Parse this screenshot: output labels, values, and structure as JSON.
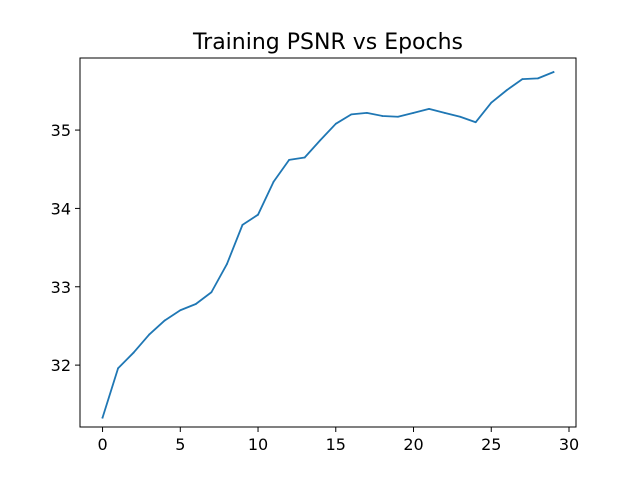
{
  "chart_data": {
    "type": "line",
    "title": "Training PSNR vs Epochs",
    "xlabel": "",
    "ylabel": "",
    "xlim": [
      -1.45,
      30.45
    ],
    "ylim": [
      31.21,
      35.92
    ],
    "x_ticks": [
      0,
      5,
      10,
      15,
      20,
      25,
      30
    ],
    "y_ticks": [
      32,
      33,
      34,
      35
    ],
    "grid": false,
    "legend": "none",
    "series": [
      {
        "color": "#1f77b4",
        "x": [
          0,
          1,
          2,
          3,
          4,
          5,
          6,
          7,
          8,
          9,
          10,
          11,
          12,
          13,
          14,
          15,
          16,
          17,
          18,
          19,
          20,
          21,
          22,
          23,
          24,
          25,
          26,
          27,
          28,
          29
        ],
        "values": [
          31.33,
          31.96,
          32.16,
          32.39,
          32.57,
          32.7,
          32.78,
          32.93,
          33.29,
          33.79,
          33.92,
          34.34,
          34.62,
          34.65,
          34.87,
          35.08,
          35.2,
          35.22,
          35.18,
          35.17,
          35.22,
          35.27,
          35.22,
          35.17,
          35.1,
          35.35,
          35.51,
          35.65,
          35.66,
          35.74
        ]
      }
    ]
  }
}
